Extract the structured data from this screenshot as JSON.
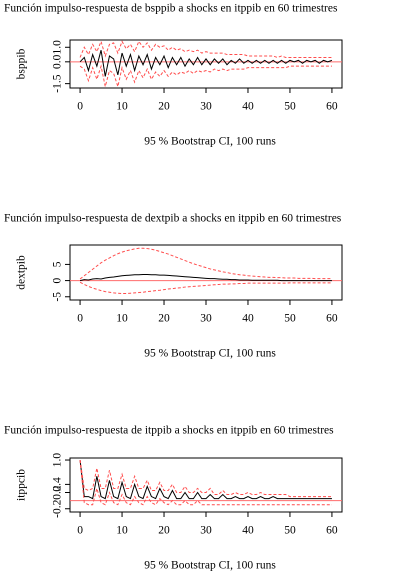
{
  "chart_data": [
    {
      "type": "line",
      "title": "Función impulso-respuesta de bsppib a shocks en itppib en 60 trimestres",
      "xlabel": "95 % Bootstrap CI, 100 runs",
      "ylabel": "bsppib",
      "x": [
        0,
        1,
        2,
        3,
        4,
        5,
        6,
        7,
        8,
        9,
        10,
        11,
        12,
        13,
        14,
        15,
        16,
        17,
        18,
        19,
        20,
        21,
        22,
        23,
        24,
        25,
        26,
        27,
        28,
        29,
        30,
        31,
        32,
        33,
        34,
        35,
        36,
        37,
        38,
        39,
        40,
        41,
        42,
        43,
        44,
        45,
        46,
        47,
        48,
        49,
        50,
        51,
        52,
        53,
        54,
        55,
        56,
        57,
        58,
        59,
        60
      ],
      "xlim": [
        -2.4,
        62.4
      ],
      "xticks": [
        0,
        10,
        20,
        30,
        40,
        50,
        60
      ],
      "ylim": [
        -1.8,
        1.5
      ],
      "yticks": [
        -1.5,
        {
          "value": 0,
          "label": "0.0"
        },
        {
          "value": 1,
          "label": "1.0"
        }
      ],
      "reference_line": 0,
      "reference_color": "#ff6b6b",
      "series": [
        {
          "color": "#000000",
          "style": "solid",
          "values": [
            0,
            0.3,
            -0.6,
            0.5,
            -0.3,
            0.8,
            -1.0,
            0.4,
            0.2,
            -0.9,
            0.6,
            -0.3,
            0.5,
            -0.6,
            0.4,
            -0.2,
            0.5,
            -0.5,
            0.3,
            -0.2,
            0.4,
            -0.4,
            0.3,
            -0.2,
            0.3,
            -0.3,
            0.2,
            -0.2,
            0.3,
            -0.2,
            0.2,
            -0.2,
            0.2,
            -0.1,
            0.2,
            -0.2,
            0.1,
            -0.1,
            0.2,
            -0.1,
            0.1,
            -0.1,
            0.1,
            -0.1,
            0.1,
            -0.1,
            0.1,
            -0.1,
            0.1,
            -0.1,
            0.1,
            0,
            0.1,
            -0.1,
            0.1,
            0,
            0.1,
            -0.1,
            0.1,
            0,
            0.1
          ]
        },
        {
          "color": "#ff4d4d",
          "style": "dashed",
          "values": [
            0.3,
            1.0,
            0.5,
            1.2,
            0.7,
            1.4,
            0.4,
            1.2,
            1.3,
            0.6,
            1.4,
            0.9,
            1.2,
            0.7,
            1.4,
            1.0,
            1.3,
            0.8,
            1.2,
            1.0,
            1.1,
            0.8,
            1.0,
            0.8,
            0.9,
            0.7,
            0.8,
            0.7,
            0.8,
            0.6,
            0.7,
            0.6,
            0.6,
            0.6,
            0.6,
            0.5,
            0.5,
            0.5,
            0.5,
            0.5,
            0.4,
            0.4,
            0.4,
            0.4,
            0.4,
            0.4,
            0.4,
            0.3,
            0.4,
            0.3,
            0.3,
            0.3,
            0.3,
            0.3,
            0.3,
            0.3,
            0.3,
            0.3,
            0.3,
            0.3,
            0.3
          ]
        },
        {
          "color": "#ff4d4d",
          "style": "dashed",
          "values": [
            -0.3,
            -0.5,
            -1.3,
            -0.4,
            -1.2,
            -0.3,
            -1.7,
            -0.6,
            -0.8,
            -1.7,
            -0.4,
            -1.2,
            -0.6,
            -1.4,
            -0.6,
            -1.1,
            -0.5,
            -1.2,
            -0.7,
            -1.0,
            -0.6,
            -1.0,
            -0.7,
            -0.9,
            -0.7,
            -0.8,
            -0.6,
            -0.8,
            -0.6,
            -0.7,
            -0.6,
            -0.7,
            -0.5,
            -0.6,
            -0.5,
            -0.6,
            -0.5,
            -0.5,
            -0.5,
            -0.5,
            -0.4,
            -0.4,
            -0.4,
            -0.4,
            -0.4,
            -0.4,
            -0.4,
            -0.4,
            -0.4,
            -0.4,
            -0.3,
            -0.3,
            -0.3,
            -0.3,
            -0.3,
            -0.3,
            -0.3,
            -0.3,
            -0.3,
            -0.3,
            -0.3
          ]
        }
      ]
    },
    {
      "type": "line",
      "title": "Función impulso-respuesta de dextpib a shocks en itppib en 60 trimestres",
      "xlabel": "95 % Bootstrap CI, 100 runs",
      "ylabel": "dextpib",
      "x": [
        0,
        1,
        2,
        3,
        4,
        5,
        6,
        7,
        8,
        9,
        10,
        11,
        12,
        13,
        14,
        15,
        16,
        17,
        18,
        19,
        20,
        21,
        22,
        23,
        24,
        25,
        26,
        27,
        28,
        29,
        30,
        31,
        32,
        33,
        34,
        35,
        36,
        37,
        38,
        39,
        40,
        41,
        42,
        43,
        44,
        45,
        46,
        47,
        48,
        49,
        50,
        51,
        52,
        53,
        54,
        55,
        56,
        57,
        58,
        59,
        60
      ],
      "xlim": [
        -2.4,
        62.4
      ],
      "xticks": [
        0,
        10,
        20,
        30,
        40,
        50,
        60
      ],
      "ylim": [
        -6,
        11
      ],
      "yticks": [
        -5,
        0,
        5
      ],
      "reference_line": 0,
      "reference_color": "#ff6b6b",
      "series": [
        {
          "color": "#000000",
          "style": "solid",
          "values": [
            0,
            0.3,
            0.2,
            0.5,
            0.6,
            0.5,
            0.8,
            1.0,
            1.1,
            1.3,
            1.5,
            1.6,
            1.7,
            1.8,
            1.8,
            1.9,
            1.9,
            1.8,
            1.8,
            1.7,
            1.7,
            1.6,
            1.5,
            1.4,
            1.3,
            1.2,
            1.1,
            1.0,
            0.9,
            0.8,
            0.7,
            0.6,
            0.6,
            0.5,
            0.4,
            0.4,
            0.3,
            0.3,
            0.2,
            0.2,
            0.2,
            0.1,
            0.1,
            0.1,
            0.1,
            0.1,
            0.1,
            0.1,
            0,
            0,
            0,
            0,
            0,
            0,
            0,
            0,
            0,
            0,
            0,
            0,
            0
          ]
        },
        {
          "color": "#ff4d4d",
          "style": "dashed",
          "values": [
            0.5,
            1.5,
            2.5,
            3.5,
            4.5,
            5.5,
            6.3,
            7.0,
            7.7,
            8.3,
            8.8,
            9.2,
            9.5,
            9.8,
            10.0,
            10.0,
            9.9,
            9.7,
            9.4,
            9.0,
            8.6,
            8.2,
            7.7,
            7.2,
            6.7,
            6.2,
            5.7,
            5.2,
            4.8,
            4.4,
            4.0,
            3.6,
            3.3,
            3.0,
            2.7,
            2.5,
            2.2,
            2.0,
            1.8,
            1.7,
            1.5,
            1.4,
            1.3,
            1.2,
            1.1,
            1.0,
            1.0,
            0.9,
            0.9,
            0.8,
            0.8,
            0.8,
            0.7,
            0.7,
            0.7,
            0.7,
            0.6,
            0.6,
            0.6,
            0.6,
            0.6
          ]
        },
        {
          "color": "#ff4d4d",
          "style": "dashed",
          "values": [
            -0.5,
            -1.2,
            -1.8,
            -2.3,
            -2.7,
            -3.1,
            -3.4,
            -3.6,
            -3.8,
            -3.9,
            -4.0,
            -4.0,
            -3.9,
            -3.8,
            -3.7,
            -3.6,
            -3.4,
            -3.3,
            -3.1,
            -3.0,
            -2.8,
            -2.6,
            -2.5,
            -2.3,
            -2.2,
            -2.0,
            -1.9,
            -1.8,
            -1.7,
            -1.6,
            -1.5,
            -1.4,
            -1.3,
            -1.2,
            -1.1,
            -1.1,
            -1.0,
            -1.0,
            -0.9,
            -0.9,
            -0.8,
            -0.8,
            -0.8,
            -0.8,
            -0.8,
            -0.8,
            -0.8,
            -0.8,
            -0.8,
            -0.8,
            -0.7,
            -0.7,
            -0.7,
            -0.7,
            -0.7,
            -0.7,
            -0.7,
            -0.7,
            -0.7,
            -0.7,
            -0.7
          ]
        }
      ]
    },
    {
      "type": "line",
      "title": "Función impulso-respuesta de itppib a shocks en itppib en 60 trimestres",
      "xlabel": "95 % Bootstrap CI, 100 runs",
      "ylabel": "itppcib",
      "x": [
        0,
        1,
        2,
        3,
        4,
        5,
        6,
        7,
        8,
        9,
        10,
        11,
        12,
        13,
        14,
        15,
        16,
        17,
        18,
        19,
        20,
        21,
        22,
        23,
        24,
        25,
        26,
        27,
        28,
        29,
        30,
        31,
        32,
        33,
        34,
        35,
        36,
        37,
        38,
        39,
        40,
        41,
        42,
        43,
        44,
        45,
        46,
        47,
        48,
        49,
        50,
        51,
        52,
        53,
        54,
        55,
        56,
        57,
        58,
        59,
        60
      ],
      "xlim": [
        -2.4,
        62.4
      ],
      "xticks": [
        0,
        10,
        20,
        30,
        40,
        50,
        60
      ],
      "ylim": [
        -0.28,
        1.05
      ],
      "yticks": [
        -0.2,
        0.2,
        0.4,
        {
          "value": 1,
          "label": "1.0"
        }
      ],
      "reference_line": 0,
      "reference_color": "#ff6b6b",
      "series": [
        {
          "color": "#000000",
          "style": "solid",
          "values": [
            1.0,
            0.1,
            0.1,
            0.05,
            0.6,
            0.1,
            0.05,
            0.5,
            0.1,
            0.05,
            0.45,
            0.1,
            0.05,
            0.4,
            0.1,
            0.05,
            0.35,
            0.1,
            0.05,
            0.3,
            0.1,
            0.05,
            0.25,
            0.05,
            0.05,
            0.2,
            0.05,
            0.05,
            0.2,
            0.05,
            0.05,
            0.15,
            0.05,
            0.05,
            0.15,
            0.05,
            0.05,
            0.1,
            0.05,
            0.05,
            0.1,
            0.05,
            0.05,
            0.1,
            0.05,
            0.05,
            0.1,
            0.05,
            0.05,
            0.05,
            0.05,
            0.05,
            0.05,
            0.05,
            0.05,
            0.05,
            0.05,
            0.05,
            0.05,
            0.05,
            0.05
          ]
        },
        {
          "color": "#ff4d4d",
          "style": "dashed",
          "values": [
            1.0,
            0.3,
            0.25,
            0.3,
            0.8,
            0.3,
            0.3,
            0.75,
            0.3,
            0.3,
            0.65,
            0.3,
            0.3,
            0.6,
            0.3,
            0.3,
            0.5,
            0.25,
            0.25,
            0.45,
            0.25,
            0.25,
            0.4,
            0.2,
            0.2,
            0.35,
            0.2,
            0.2,
            0.3,
            0.2,
            0.2,
            0.3,
            0.15,
            0.15,
            0.25,
            0.15,
            0.15,
            0.2,
            0.15,
            0.15,
            0.2,
            0.15,
            0.15,
            0.2,
            0.15,
            0.15,
            0.15,
            0.15,
            0.15,
            0.15,
            0.1,
            0.1,
            0.1,
            0.1,
            0.1,
            0.1,
            0.1,
            0.1,
            0.1,
            0.1,
            0.1
          ]
        },
        {
          "color": "#ff4d4d",
          "style": "dashed",
          "values": [
            1.0,
            -0.05,
            -0.1,
            -0.1,
            0.3,
            -0.05,
            -0.1,
            0.2,
            -0.05,
            -0.1,
            0.15,
            -0.05,
            -0.1,
            0.1,
            -0.05,
            -0.1,
            0.1,
            -0.05,
            -0.1,
            0.05,
            -0.05,
            -0.1,
            0,
            -0.1,
            -0.1,
            0,
            -0.1,
            -0.1,
            0,
            -0.1,
            -0.1,
            -0.1,
            -0.1,
            -0.1,
            -0.1,
            -0.1,
            -0.1,
            -0.1,
            -0.1,
            -0.1,
            -0.1,
            -0.1,
            -0.1,
            -0.1,
            -0.1,
            -0.1,
            -0.1,
            -0.1,
            -0.1,
            -0.1,
            -0.1,
            -0.1,
            -0.1,
            -0.1,
            -0.1,
            -0.1,
            -0.1,
            -0.1,
            -0.1,
            -0.1,
            -0.1
          ]
        }
      ]
    }
  ]
}
